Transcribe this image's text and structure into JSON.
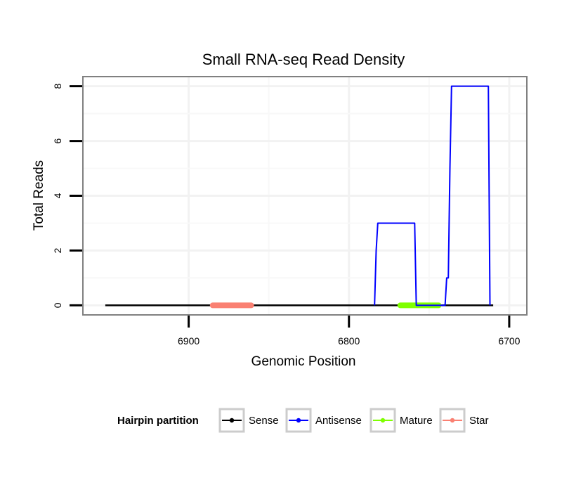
{
  "chart_data": {
    "type": "line",
    "title": "Small RNA-seq Read Density",
    "xlabel": "Genomic Position",
    "ylabel": "Total Reads",
    "x_reversed": true,
    "xlim": [
      6966,
      6689
    ],
    "ylim": [
      -0.35,
      8.35
    ],
    "xticks": [
      6900,
      6800,
      6700
    ],
    "xtick_labels": [
      "6900",
      "6800",
      "6700"
    ],
    "yticks": [
      0,
      2,
      4,
      6,
      8
    ],
    "ytick_labels": [
      "0",
      "2",
      "4",
      "6",
      "8"
    ],
    "grid": true,
    "legend": {
      "title": "Hairpin partition",
      "position": "bottom",
      "entries": [
        {
          "label": "Sense",
          "color": "#000000"
        },
        {
          "label": "Antisense",
          "color": "#0000ff"
        },
        {
          "label": "Mature",
          "color": "#7fff00"
        },
        {
          "label": "Star",
          "color": "#fa8072"
        }
      ]
    },
    "series": [
      {
        "name": "Sense",
        "color": "#000000",
        "x": [
          6952,
          6710
        ],
        "y": [
          0,
          0
        ]
      },
      {
        "name": "Antisense",
        "color": "#0000ff",
        "x": [
          6784,
          6783,
          6782,
          6759,
          6758,
          6740,
          6739,
          6738,
          6737,
          6736,
          6713,
          6712
        ],
        "y": [
          0,
          2,
          3,
          3,
          0,
          0,
          1,
          1,
          5,
          8,
          8,
          0
        ]
      },
      {
        "name": "Mature",
        "color": "#7fff00",
        "x": [
          6768,
          6744
        ],
        "y": [
          0,
          0
        ]
      },
      {
        "name": "Star",
        "color": "#fa8072",
        "x": [
          6885,
          6861
        ],
        "y": [
          0,
          0
        ]
      }
    ]
  }
}
